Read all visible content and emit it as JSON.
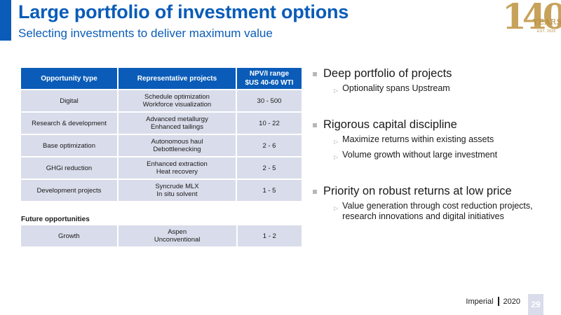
{
  "header": {
    "title": "Large portfolio of investment options",
    "subtitle": "Selecting investments to deliver maximum value"
  },
  "logo": {
    "number": "140",
    "word": "YEARS",
    "est": "EST. 2020"
  },
  "table": {
    "headers": [
      "Opportunity type",
      "Representative projects",
      "NPV/I range",
      "$US 40-60 WTI"
    ],
    "rows": [
      {
        "type": "Digital",
        "projects": [
          "Schedule optimization",
          "Workforce visualization"
        ],
        "range": "30 - 500"
      },
      {
        "type": "Research & development",
        "projects": [
          "Advanced metallurgy",
          "Enhanced tailings"
        ],
        "range": "10 - 22"
      },
      {
        "type": "Base optimization",
        "projects": [
          "Autonomous haul",
          "Debottlenecking"
        ],
        "range": "2 - 6"
      },
      {
        "type": "GHGi reduction",
        "projects": [
          "Enhanced extraction",
          "Heat recovery"
        ],
        "range": "2 - 5"
      },
      {
        "type": "Development projects",
        "projects": [
          "Syncrude MLX",
          "In situ solvent"
        ],
        "range": "1 - 5"
      }
    ],
    "future_label": "Future opportunities",
    "future_rows": [
      {
        "type": "Growth",
        "projects": [
          "Aspen",
          "Unconventional"
        ],
        "range": "1 - 2"
      }
    ]
  },
  "bullets": [
    {
      "head": "Deep portfolio of projects",
      "subs": [
        "Optionality spans Upstream"
      ]
    },
    {
      "head": "Rigorous capital discipline",
      "subs": [
        "Maximize returns within existing assets",
        "Volume growth without large investment"
      ]
    },
    {
      "head": "Priority on robust returns at low price",
      "subs": [
        "Value generation through cost reduction projects, research innovations and digital initiatives"
      ]
    }
  ],
  "footer": {
    "company": "Imperial",
    "year": "2020",
    "page": "29"
  },
  "colors": {
    "accent": "#0a5cb8",
    "cell": "#d9dcea",
    "gold": "#c7a25a"
  }
}
